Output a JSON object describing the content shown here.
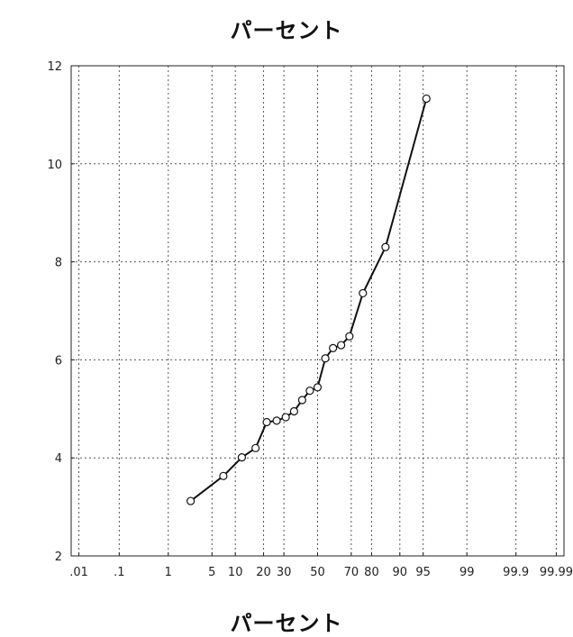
{
  "chart_data": {
    "type": "line",
    "title": "パーセント",
    "xlabel": "パーセント",
    "ylabel": "",
    "x_scale": "normal-probability",
    "x_ticks": [
      0.01,
      0.1,
      1,
      5,
      10,
      20,
      30,
      50,
      70,
      80,
      90,
      95,
      99,
      99.9,
      99.99
    ],
    "x_tick_labels": [
      ".01",
      ".1",
      "1",
      "5",
      "10",
      "20",
      "30",
      "50",
      "70",
      "80",
      "90",
      "95",
      "99",
      "99.9",
      "99.99"
    ],
    "ylim": [
      2,
      12
    ],
    "y_ticks": [
      2,
      4,
      6,
      8,
      10,
      12
    ],
    "y_tick_labels": [
      "2",
      "4",
      "6",
      "8",
      "10",
      "12"
    ],
    "grid": true,
    "series": [
      {
        "marker": "circle",
        "points": [
          {
            "x": 2.4,
            "y": 3.12
          },
          {
            "x": 7.1,
            "y": 3.63
          },
          {
            "x": 11.9,
            "y": 4.01
          },
          {
            "x": 16.7,
            "y": 4.2
          },
          {
            "x": 21.4,
            "y": 4.73
          },
          {
            "x": 26.2,
            "y": 4.76
          },
          {
            "x": 31.0,
            "y": 4.83
          },
          {
            "x": 35.7,
            "y": 4.95
          },
          {
            "x": 40.5,
            "y": 5.18
          },
          {
            "x": 45.2,
            "y": 5.37
          },
          {
            "x": 50.0,
            "y": 5.44
          },
          {
            "x": 54.8,
            "y": 6.03
          },
          {
            "x": 59.5,
            "y": 6.24
          },
          {
            "x": 64.3,
            "y": 6.3
          },
          {
            "x": 69.0,
            "y": 6.48
          },
          {
            "x": 76.0,
            "y": 7.36
          },
          {
            "x": 85.5,
            "y": 8.3
          },
          {
            "x": 95.5,
            "y": 11.33
          }
        ]
      }
    ]
  }
}
